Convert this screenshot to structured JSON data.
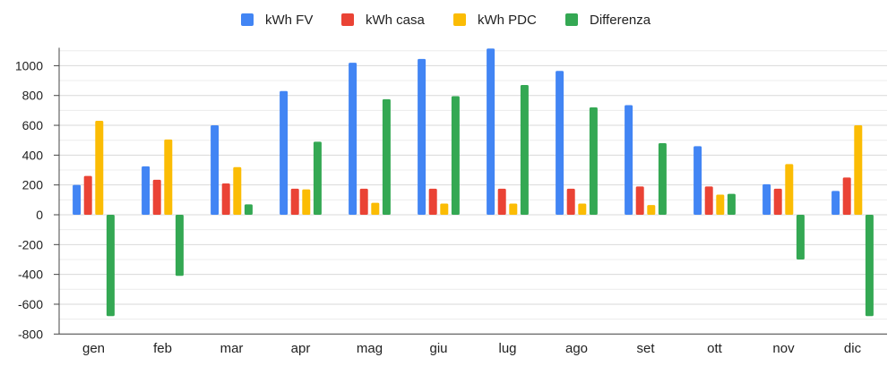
{
  "chart_data": {
    "type": "bar",
    "categories": [
      "gen",
      "feb",
      "mar",
      "apr",
      "mag",
      "giu",
      "lug",
      "ago",
      "set",
      "ott",
      "nov",
      "dic"
    ],
    "series": [
      {
        "name": "kWh FV",
        "color": "#4285F4",
        "values": [
          200,
          325,
          600,
          830,
          1020,
          1045,
          1115,
          965,
          735,
          460,
          205,
          160
        ]
      },
      {
        "name": "kWh casa",
        "color": "#EA4335",
        "values": [
          260,
          235,
          210,
          175,
          175,
          175,
          175,
          175,
          190,
          190,
          175,
          250
        ]
      },
      {
        "name": "kWh PDC",
        "color": "#FBBC04",
        "values": [
          630,
          505,
          320,
          170,
          80,
          75,
          75,
          75,
          65,
          135,
          340,
          600
        ]
      },
      {
        "name": "Differenza",
        "color": "#34A853",
        "values": [
          -680,
          -410,
          70,
          490,
          775,
          795,
          870,
          720,
          480,
          140,
          -300,
          -680
        ]
      }
    ],
    "yticks": [
      1000,
      800,
      600,
      400,
      200,
      0,
      -200,
      -400,
      -600,
      -800
    ],
    "ylim": [
      -800,
      1120
    ],
    "grid": true,
    "legend_position": "top-center",
    "title": "",
    "xlabel": "",
    "ylabel": ""
  }
}
